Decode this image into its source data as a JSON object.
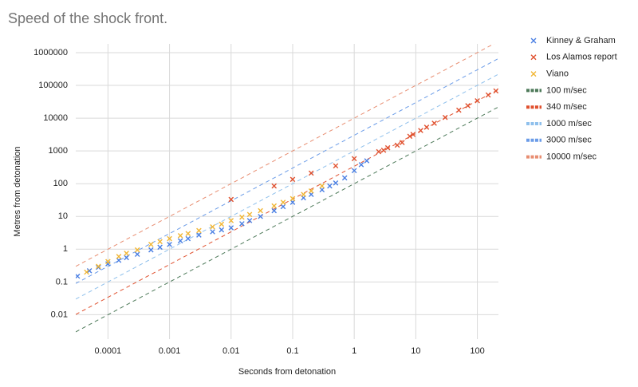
{
  "chart_data": {
    "type": "scatter",
    "title": "Speed of the shock front.",
    "x_label": "Seconds from detonation",
    "y_label": "Metres from detonation",
    "log_x": true,
    "log_y": true,
    "grid": true,
    "legend": "right",
    "xlim": [
      3e-05,
      220
    ],
    "ylim": [
      0.0018,
      1850000
    ],
    "xticks": [
      0.0001,
      0.001,
      0.01,
      0.1,
      1,
      10,
      100
    ],
    "yticks": [
      0.01,
      0.1,
      1,
      10,
      100,
      1000,
      10000,
      100000,
      1000000
    ],
    "series": [
      {
        "name": "Kinney & Graham",
        "color": "#4a7fe3",
        "x": [
          3.2e-05,
          5e-05,
          7e-05,
          0.0001,
          0.00015,
          0.0002,
          0.0003,
          0.0005,
          0.0007,
          0.001,
          0.0015,
          0.002,
          0.003,
          0.005,
          0.007,
          0.01,
          0.015,
          0.02,
          0.03,
          0.05,
          0.07,
          0.1,
          0.15,
          0.2,
          0.3,
          0.4,
          0.5,
          0.7,
          1,
          1.3,
          1.6
        ],
        "values": [
          0.15,
          0.22,
          0.28,
          0.36,
          0.46,
          0.55,
          0.7,
          0.95,
          1.15,
          1.4,
          1.8,
          2.1,
          2.7,
          3.4,
          3.9,
          4.5,
          6,
          7.5,
          10,
          15,
          20,
          27,
          37,
          47,
          65,
          85,
          105,
          150,
          250,
          380,
          500
        ]
      },
      {
        "name": "Los Alamos report",
        "color": "#e0512f",
        "x": [
          0.01,
          0.05,
          0.1,
          0.2,
          0.5,
          1,
          2.5,
          3,
          3.5,
          5,
          6,
          8,
          9,
          12,
          15,
          20,
          30,
          50,
          70,
          100,
          150,
          200
        ],
        "values": [
          33,
          85,
          135,
          210,
          350,
          580,
          950,
          1050,
          1250,
          1500,
          1800,
          2800,
          3200,
          4200,
          5300,
          7000,
          10500,
          17500,
          24000,
          34000,
          51000,
          68000
        ]
      },
      {
        "name": "Viano",
        "color": "#f1b634",
        "x": [
          4.5e-05,
          7e-05,
          0.0001,
          0.00015,
          0.0002,
          0.0003,
          0.0005,
          0.0007,
          0.001,
          0.0015,
          0.002,
          0.003,
          0.005,
          0.007,
          0.01,
          0.015,
          0.02,
          0.03,
          0.05,
          0.07,
          0.1,
          0.15,
          0.2,
          0.3
        ],
        "values": [
          0.2,
          0.3,
          0.42,
          0.6,
          0.75,
          0.95,
          1.4,
          1.7,
          2.1,
          2.6,
          3,
          3.7,
          4.8,
          5.8,
          7.5,
          9.5,
          11.5,
          15,
          21,
          27,
          35,
          47,
          60,
          85
        ]
      },
      {
        "name": "100 m/sec",
        "color": "#4e7a5a",
        "speed": 100
      },
      {
        "name": "340 m/sec",
        "color": "#e0512f",
        "speed": 340
      },
      {
        "name": "1000 m/sec",
        "color": "#8fc0ec",
        "speed": 1000
      },
      {
        "name": "3000 m/sec",
        "color": "#6b9ce8",
        "speed": 3000
      },
      {
        "name": "10000 m/sec",
        "color": "#e88e72",
        "speed": 10000
      }
    ]
  }
}
